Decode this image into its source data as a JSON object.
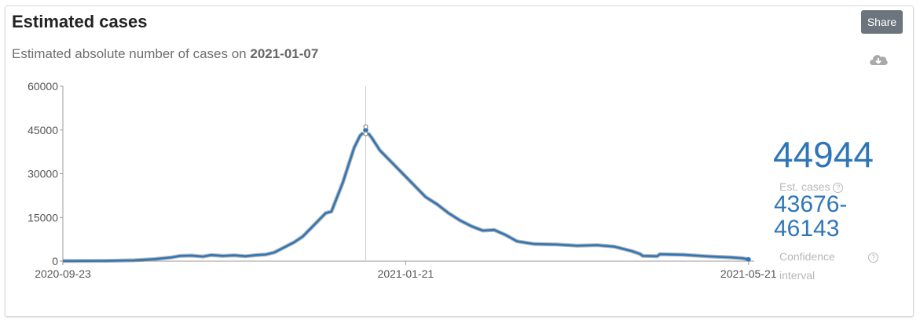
{
  "title": "Estimated cases",
  "subtitle": {
    "prefix": "Estimated absolute number of cases on",
    "date": "2021-01-07"
  },
  "share_label": "Share",
  "download_icon": "cloud-download-icon",
  "side_panel": {
    "estimate": "44944",
    "estimate_label": "Est. cases",
    "ci_low": "43676-",
    "ci_high": "46143",
    "ci_label_1": "Confidence",
    "ci_label_2": "interval",
    "help_glyph": "?"
  },
  "colors": {
    "line": "#2f76b8",
    "band": "#7a7a7a",
    "axis": "#999999"
  },
  "chart_data": {
    "type": "line",
    "title": "",
    "xlabel": "",
    "ylabel": "",
    "ylim": [
      0,
      60000
    ],
    "yticks": [
      "0",
      "15000",
      "30000",
      "45000",
      "60000"
    ],
    "xlim": [
      "2020-09-23",
      "2021-05-23"
    ],
    "xticks": [
      "2020-09-23",
      "2021-01-21",
      "2021-05-21"
    ],
    "highlight": {
      "x": "2021-01-07",
      "y": 44944,
      "low": 43676,
      "high": 46143
    },
    "series": [
      {
        "values": [
          [
            "2020-09-23",
            50
          ],
          [
            "2020-10-08",
            100
          ],
          [
            "2020-10-18",
            300
          ],
          [
            "2020-10-25",
            700
          ],
          [
            "2020-10-31",
            1300
          ],
          [
            "2020-11-03",
            1800
          ],
          [
            "2020-11-07",
            1900
          ],
          [
            "2020-11-11",
            1600
          ],
          [
            "2020-11-14",
            2100
          ],
          [
            "2020-11-18",
            1800
          ],
          [
            "2020-11-22",
            2000
          ],
          [
            "2020-11-26",
            1700
          ],
          [
            "2020-11-30",
            2100
          ],
          [
            "2020-12-03",
            2300
          ],
          [
            "2020-12-06",
            3000
          ],
          [
            "2020-12-09",
            4500
          ],
          [
            "2020-12-13",
            6500
          ],
          [
            "2020-12-16",
            8500
          ],
          [
            "2020-12-19",
            11500
          ],
          [
            "2020-12-22",
            14500
          ],
          [
            "2020-12-24",
            16500
          ],
          [
            "2020-12-26",
            17000
          ],
          [
            "2020-12-28",
            22000
          ],
          [
            "2020-12-30",
            27000
          ],
          [
            "2021-01-01",
            33000
          ],
          [
            "2021-01-03",
            39000
          ],
          [
            "2021-01-05",
            43000
          ],
          [
            "2021-01-07",
            44944
          ],
          [
            "2021-01-09",
            42500
          ],
          [
            "2021-01-12",
            38000
          ],
          [
            "2021-01-15",
            35000
          ],
          [
            "2021-01-18",
            32000
          ],
          [
            "2021-01-21",
            29000
          ],
          [
            "2021-01-24",
            26000
          ],
          [
            "2021-01-28",
            22000
          ],
          [
            "2021-02-01",
            19500
          ],
          [
            "2021-02-05",
            16500
          ],
          [
            "2021-02-09",
            14000
          ],
          [
            "2021-02-13",
            12000
          ],
          [
            "2021-02-17",
            10500
          ],
          [
            "2021-02-21",
            10700
          ],
          [
            "2021-02-25",
            9000
          ],
          [
            "2021-03-01",
            6800
          ],
          [
            "2021-03-07",
            5900
          ],
          [
            "2021-03-15",
            5700
          ],
          [
            "2021-03-22",
            5300
          ],
          [
            "2021-03-29",
            5500
          ],
          [
            "2021-04-04",
            5000
          ],
          [
            "2021-04-10",
            3500
          ],
          [
            "2021-04-13",
            2500
          ],
          [
            "2021-04-14",
            1800
          ],
          [
            "2021-04-19",
            1700
          ],
          [
            "2021-04-20",
            2400
          ],
          [
            "2021-04-28",
            2200
          ],
          [
            "2021-05-06",
            1700
          ],
          [
            "2021-05-15",
            1300
          ],
          [
            "2021-05-19",
            1000
          ],
          [
            "2021-05-21",
            600
          ]
        ]
      }
    ]
  }
}
